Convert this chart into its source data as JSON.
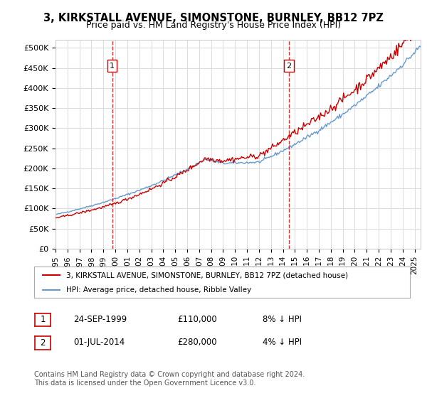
{
  "title": "3, KIRKSTALL AVENUE, SIMONSTONE, BURNLEY, BB12 7PZ",
  "subtitle": "Price paid vs. HM Land Registry's House Price Index (HPI)",
  "ylabel_ticks": [
    "£0",
    "£50K",
    "£100K",
    "£150K",
    "£200K",
    "£250K",
    "£300K",
    "£350K",
    "£400K",
    "£450K",
    "£500K"
  ],
  "ytick_values": [
    0,
    50000,
    100000,
    150000,
    200000,
    250000,
    300000,
    350000,
    400000,
    450000,
    500000
  ],
  "ylim": [
    0,
    520000
  ],
  "xlim_start": 1995.0,
  "xlim_end": 2025.5,
  "sale1_date": 1999.73,
  "sale1_price": 110000,
  "sale1_label": "1",
  "sale2_date": 2014.5,
  "sale2_price": 280000,
  "sale2_label": "2",
  "line_color_property": "#cc0000",
  "line_color_hpi": "#6699cc",
  "legend_entry1": "3, KIRKSTALL AVENUE, SIMONSTONE, BURNLEY, BB12 7PZ (detached house)",
  "legend_entry2": "HPI: Average price, detached house, Ribble Valley",
  "table_row1": [
    "1",
    "24-SEP-1999",
    "£110,000",
    "8% ↓ HPI"
  ],
  "table_row2": [
    "2",
    "01-JUL-2014",
    "£280,000",
    "4% ↓ HPI"
  ],
  "footnote": "Contains HM Land Registry data © Crown copyright and database right 2024.\nThis data is licensed under the Open Government Licence v3.0.",
  "background_color": "#ffffff",
  "grid_color": "#dddddd",
  "xtick_years": [
    1995,
    1996,
    1997,
    1998,
    1999,
    2000,
    2001,
    2002,
    2003,
    2004,
    2005,
    2006,
    2007,
    2008,
    2009,
    2010,
    2011,
    2012,
    2013,
    2014,
    2015,
    2016,
    2017,
    2018,
    2019,
    2020,
    2021,
    2022,
    2023,
    2024,
    2025
  ]
}
